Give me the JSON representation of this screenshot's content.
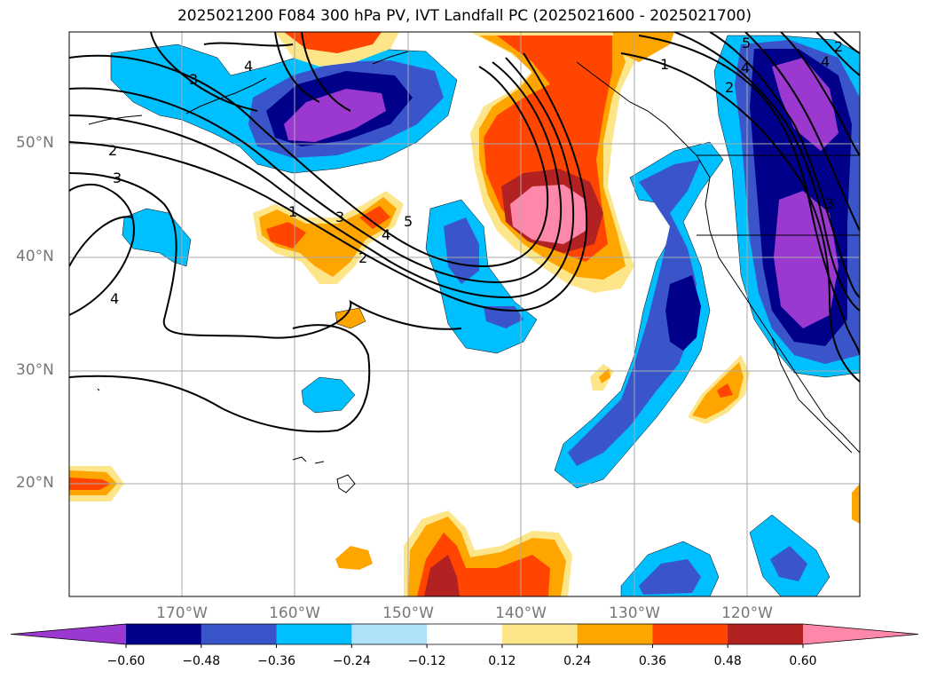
{
  "title": "2025021200 F084 300 hPa PV, IVT Landfall PC (2025021600 - 2025021700)",
  "lat_labels": [
    "50°N",
    "40°N",
    "30°N",
    "20°N"
  ],
  "lon_labels": [
    "170°W",
    "160°W",
    "150°W",
    "140°W",
    "130°W",
    "120°W"
  ],
  "colorbar": {
    "ticks": [
      "−0.60",
      "−0.48",
      "−0.36",
      "−0.24",
      "−0.12",
      "0.12",
      "0.24",
      "0.36",
      "0.48",
      "0.60"
    ],
    "colors": [
      "#9b38d0",
      "#00008b",
      "#3a55c9",
      "#00bfff",
      "#b0e2fa",
      "#ffffff",
      "#fde68a",
      "#ffa500",
      "#ff4500",
      "#b22222",
      "#ff88aa"
    ]
  },
  "contour_labels": {
    "a": "4",
    "b": "3",
    "c": "2",
    "d": "3",
    "e": "4",
    "f": "1",
    "g": "3",
    "h": "4",
    "i": "5",
    "j": "2",
    "k": "1",
    "l": "2",
    "m": "5",
    "n": "4",
    "o": "2",
    "p": "4",
    "q": "3"
  }
}
